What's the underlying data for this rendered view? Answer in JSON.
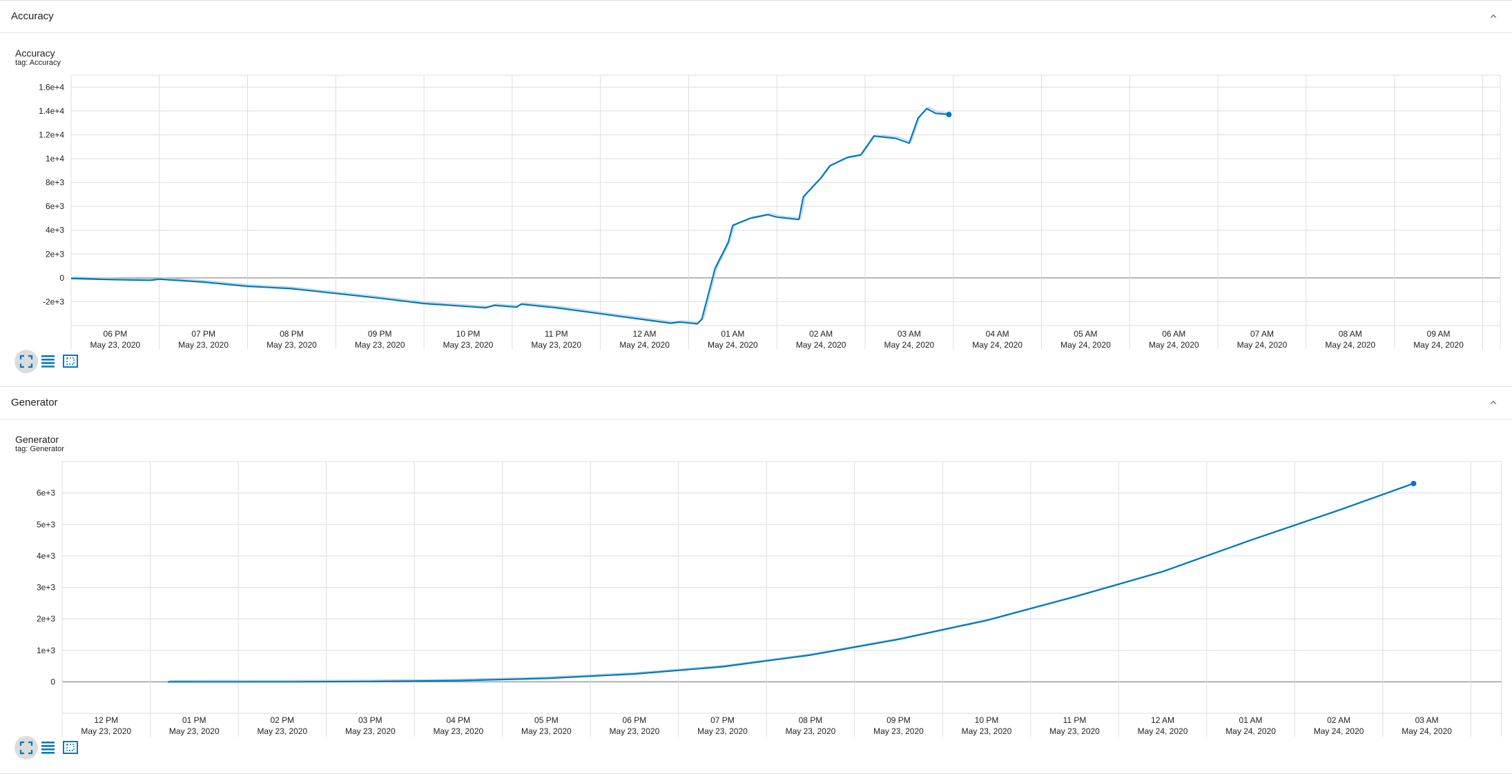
{
  "colors": {
    "line": "#0277bd",
    "smoothed_light": "#a8cfe6",
    "grid": "#dddddd",
    "zero_line": "#999999",
    "icon_blue": "#0277bd"
  },
  "icons": {
    "collapse": "chevron-up-icon",
    "fullscreen": "expand-icon",
    "log_scale": "list-lines-icon",
    "fit_domain": "fit-domain-icon"
  },
  "panels": [
    {
      "name": "Accuracy",
      "card_title": "Accuracy",
      "card_tag": "tag: Accuracy"
    },
    {
      "name": "Generator",
      "card_title": "Generator",
      "card_tag": "tag: Generator"
    }
  ],
  "chart_data": [
    {
      "type": "line",
      "title": "Accuracy",
      "subtitle": "tag: Accuracy",
      "ylim": [
        -4000,
        17000
      ],
      "y_ticks": [
        -2000,
        0,
        2000,
        4000,
        6000,
        8000,
        10000,
        12000,
        14000,
        16000
      ],
      "y_tick_labels": [
        "-2e+3",
        "0",
        "2e+3",
        "4e+3",
        "6e+3",
        "8e+3",
        "1e+4",
        "1.2e+4",
        "1.4e+4",
        "1.6e+4"
      ],
      "x_tick_labels": [
        [
          "06 PM",
          "May 23, 2020"
        ],
        [
          "07 PM",
          "May 23, 2020"
        ],
        [
          "08 PM",
          "May 23, 2020"
        ],
        [
          "09 PM",
          "May 23, 2020"
        ],
        [
          "10 PM",
          "May 23, 2020"
        ],
        [
          "11 PM",
          "May 23, 2020"
        ],
        [
          "12 AM",
          "May 24, 2020"
        ],
        [
          "01 AM",
          "May 24, 2020"
        ],
        [
          "02 AM",
          "May 24, 2020"
        ],
        [
          "03 AM",
          "May 24, 2020"
        ],
        [
          "04 AM",
          "May 24, 2020"
        ],
        [
          "05 AM",
          "May 24, 2020"
        ],
        [
          "06 AM",
          "May 24, 2020"
        ],
        [
          "07 AM",
          "May 24, 2020"
        ],
        [
          "08 AM",
          "May 24, 2020"
        ],
        [
          "09 AM",
          "May 24, 2020"
        ]
      ],
      "series": [
        {
          "x": [
            17.5,
            18.0,
            18.4,
            18.5,
            19.0,
            19.5,
            20.0,
            20.5,
            21.0,
            21.5,
            22.0,
            22.2,
            22.3,
            22.55,
            22.6,
            23.0,
            23.5,
            24.0,
            24.3,
            24.4,
            24.6,
            24.65,
            24.8,
            24.95,
            25.0,
            25.2,
            25.4,
            25.5,
            25.75,
            25.8,
            26.0,
            26.1,
            26.3,
            26.45,
            26.6,
            26.85,
            27.0,
            27.1,
            27.2,
            27.3,
            27.45
          ],
          "y": [
            -50,
            -150,
            -200,
            -100,
            -350,
            -700,
            -900,
            -1300,
            -1700,
            -2150,
            -2400,
            -2500,
            -2300,
            -2450,
            -2200,
            -2500,
            -3000,
            -3500,
            -3800,
            -3700,
            -3850,
            -3450,
            800,
            3000,
            4400,
            5000,
            5300,
            5100,
            4900,
            6800,
            8400,
            9400,
            10100,
            10300,
            11900,
            11700,
            11300,
            13400,
            14200,
            13800,
            13700
          ]
        }
      ]
    },
    {
      "type": "line",
      "title": "Generator",
      "subtitle": "tag: Generator",
      "ylim": [
        -1000,
        7000
      ],
      "y_ticks": [
        0,
        1000,
        2000,
        3000,
        4000,
        5000,
        6000
      ],
      "y_tick_labels": [
        "0",
        "1e+3",
        "2e+3",
        "3e+3",
        "4e+3",
        "5e+3",
        "6e+3"
      ],
      "x_tick_labels": [
        [
          "12 PM",
          "May 23, 2020"
        ],
        [
          "01 PM",
          "May 23, 2020"
        ],
        [
          "02 PM",
          "May 23, 2020"
        ],
        [
          "03 PM",
          "May 23, 2020"
        ],
        [
          "04 PM",
          "May 23, 2020"
        ],
        [
          "05 PM",
          "May 23, 2020"
        ],
        [
          "06 PM",
          "May 23, 2020"
        ],
        [
          "07 PM",
          "May 23, 2020"
        ],
        [
          "08 PM",
          "May 23, 2020"
        ],
        [
          "09 PM",
          "May 23, 2020"
        ],
        [
          "10 PM",
          "May 23, 2020"
        ],
        [
          "11 PM",
          "May 23, 2020"
        ],
        [
          "12 AM",
          "May 24, 2020"
        ],
        [
          "01 AM",
          "May 24, 2020"
        ],
        [
          "02 AM",
          "May 24, 2020"
        ],
        [
          "03 AM",
          "May 24, 2020"
        ]
      ],
      "series": [
        {
          "x": [
            12.7,
            14,
            15,
            16,
            17,
            18,
            19,
            20,
            21,
            22,
            23,
            24,
            25,
            26,
            26.85
          ],
          "y": [
            0,
            2,
            10,
            40,
            110,
            250,
            480,
            850,
            1350,
            1950,
            2700,
            3500,
            4500,
            5450,
            6300
          ]
        }
      ]
    }
  ]
}
